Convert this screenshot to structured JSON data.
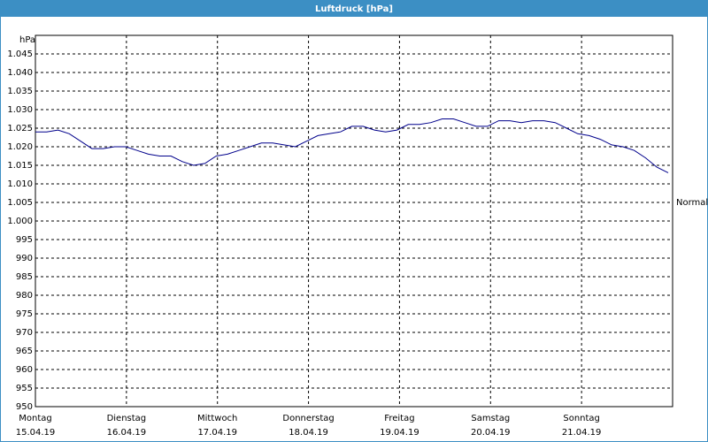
{
  "chart_data": {
    "type": "line",
    "title": "Luftdruck [hPa]",
    "y_label": "hPa",
    "days": [
      {
        "name": "Montag",
        "date": "15.04.19"
      },
      {
        "name": "Dienstag",
        "date": "16.04.19"
      },
      {
        "name": "Mittwoch",
        "date": "17.04.19"
      },
      {
        "name": "Donnerstag",
        "date": "18.04.19"
      },
      {
        "name": "Freitag",
        "date": "19.04.19"
      },
      {
        "name": "Samstag",
        "date": "20.04.19"
      },
      {
        "name": "Sonntag",
        "date": "21.04.19"
      }
    ],
    "series": [
      {
        "color": "#00008b",
        "values": [
          1024,
          1024,
          1024.5,
          1023.5,
          1021.5,
          1019.5,
          1019.5,
          1020,
          1020,
          1019,
          1018,
          1017.5,
          1017.5,
          1016,
          1015,
          1015.5,
          1017.5,
          1018,
          1019,
          1020,
          1021,
          1021,
          1020.5,
          1020,
          1021.5,
          1023,
          1023.5,
          1024,
          1025.5,
          1025.5,
          1024.5,
          1024,
          1024.5,
          1026,
          1026,
          1026.5,
          1027.5,
          1027.5,
          1026.5,
          1025.5,
          1025.5,
          1027,
          1027,
          1026.5,
          1027,
          1027,
          1026.5,
          1025,
          1023.5,
          1023,
          1022,
          1020.5,
          1020,
          1019,
          1017,
          1014.5,
          1013
        ]
      }
    ],
    "reference": {
      "label": "Normal",
      "value": 1005
    },
    "ylim": [
      950,
      1050
    ],
    "yticks": [
      950,
      955,
      960,
      965,
      970,
      975,
      980,
      985,
      990,
      995,
      {
        "value": 1000,
        "label": "1.000"
      },
      {
        "value": 1005,
        "label": "1.005"
      },
      {
        "value": 1010,
        "label": "1.010"
      },
      {
        "value": 1015,
        "label": "1.015"
      },
      {
        "value": 1020,
        "label": "1.020"
      },
      {
        "value": 1025,
        "label": "1.025"
      },
      {
        "value": 1030,
        "label": "1.030"
      },
      {
        "value": 1035,
        "label": "1.035"
      },
      {
        "value": 1040,
        "label": "1.040"
      },
      {
        "value": 1045,
        "label": "1.045"
      }
    ],
    "grid": true
  }
}
